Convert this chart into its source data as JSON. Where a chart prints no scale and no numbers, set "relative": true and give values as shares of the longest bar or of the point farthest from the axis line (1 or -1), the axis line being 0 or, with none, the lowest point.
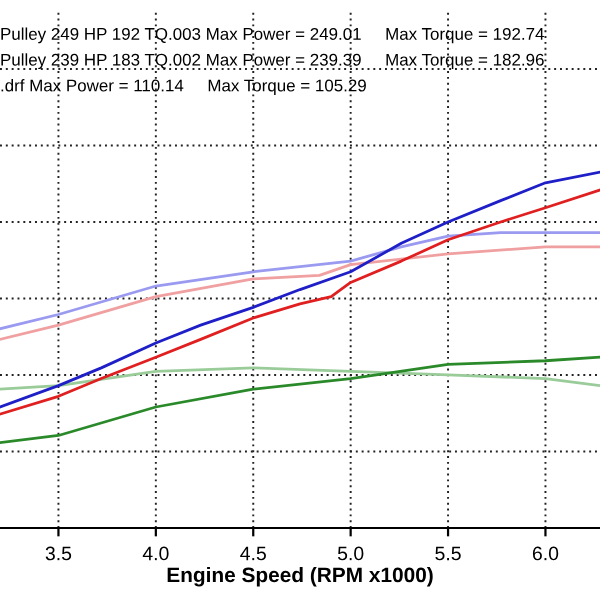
{
  "chart_data": {
    "type": "line",
    "relative": true,
    "xlabel": "Engine Speed (RPM x1000)",
    "xlim": [
      3.2,
      6.28
    ],
    "xticks": [
      {
        "value": 3.5,
        "label": "3.5"
      },
      {
        "value": 4.0,
        "label": "4.0"
      },
      {
        "value": 4.5,
        "label": "4.5"
      },
      {
        "value": 5.0,
        "label": "5.0"
      },
      {
        "value": 5.5,
        "label": "5.5"
      },
      {
        "value": 6.0,
        "label": "6.0"
      }
    ],
    "tick_labels": "x",
    "grid": true,
    "line_style": "solid",
    "annotations": [
      "Pulley 249 HP 192 TQ.003 Max Power = 249.01     Max Torque = 192.74",
      "Pulley 239 HP 183 TQ.002 Max Power = 239.39     Max Torque = 182.96",
      ".drf Max Power = 110.14     Max Torque = 105.29"
    ],
    "series": [
      {
        "color": "#9a9af0",
        "x": [
          3.2,
          3.5,
          4.0,
          4.5,
          5.0,
          5.26,
          5.5,
          5.77,
          6.0,
          6.28
        ],
        "values": [
          0.56,
          0.6,
          0.68,
          0.72,
          0.75,
          0.79,
          0.82,
          0.83,
          0.83,
          0.83
        ]
      },
      {
        "color": "#f0a0a0",
        "x": [
          3.2,
          3.5,
          4.0,
          4.5,
          4.84,
          5.0,
          5.5,
          6.0,
          6.28
        ],
        "values": [
          0.53,
          0.57,
          0.65,
          0.7,
          0.71,
          0.74,
          0.77,
          0.79,
          0.79
        ]
      },
      {
        "color": "#9acc9a",
        "x": [
          3.2,
          3.5,
          4.0,
          4.5,
          5.0,
          5.5,
          6.0,
          6.28
        ],
        "values": [
          0.39,
          0.4,
          0.44,
          0.45,
          0.44,
          0.43,
          0.42,
          0.4
        ]
      },
      {
        "color": "#2a8a2a",
        "x": [
          3.2,
          3.5,
          4.0,
          4.5,
          5.0,
          5.5,
          6.0,
          6.28
        ],
        "values": [
          0.24,
          0.26,
          0.34,
          0.39,
          0.42,
          0.46,
          0.47,
          0.48
        ]
      },
      {
        "color": "#e02020",
        "x": [
          3.2,
          3.5,
          3.72,
          4.0,
          4.23,
          4.5,
          4.74,
          4.9,
          5.0,
          5.26,
          5.5,
          5.77,
          6.0,
          6.28
        ],
        "values": [
          0.32,
          0.37,
          0.42,
          0.48,
          0.53,
          0.59,
          0.63,
          0.65,
          0.69,
          0.75,
          0.81,
          0.86,
          0.9,
          0.95
        ]
      },
      {
        "color": "#1f1fc8",
        "x": [
          3.2,
          3.5,
          3.72,
          4.0,
          4.23,
          4.5,
          4.74,
          5.0,
          5.26,
          5.5,
          5.77,
          6.0,
          6.28
        ],
        "values": [
          0.34,
          0.4,
          0.45,
          0.52,
          0.57,
          0.62,
          0.67,
          0.72,
          0.8,
          0.86,
          0.92,
          0.97,
          1.0
        ]
      }
    ]
  }
}
